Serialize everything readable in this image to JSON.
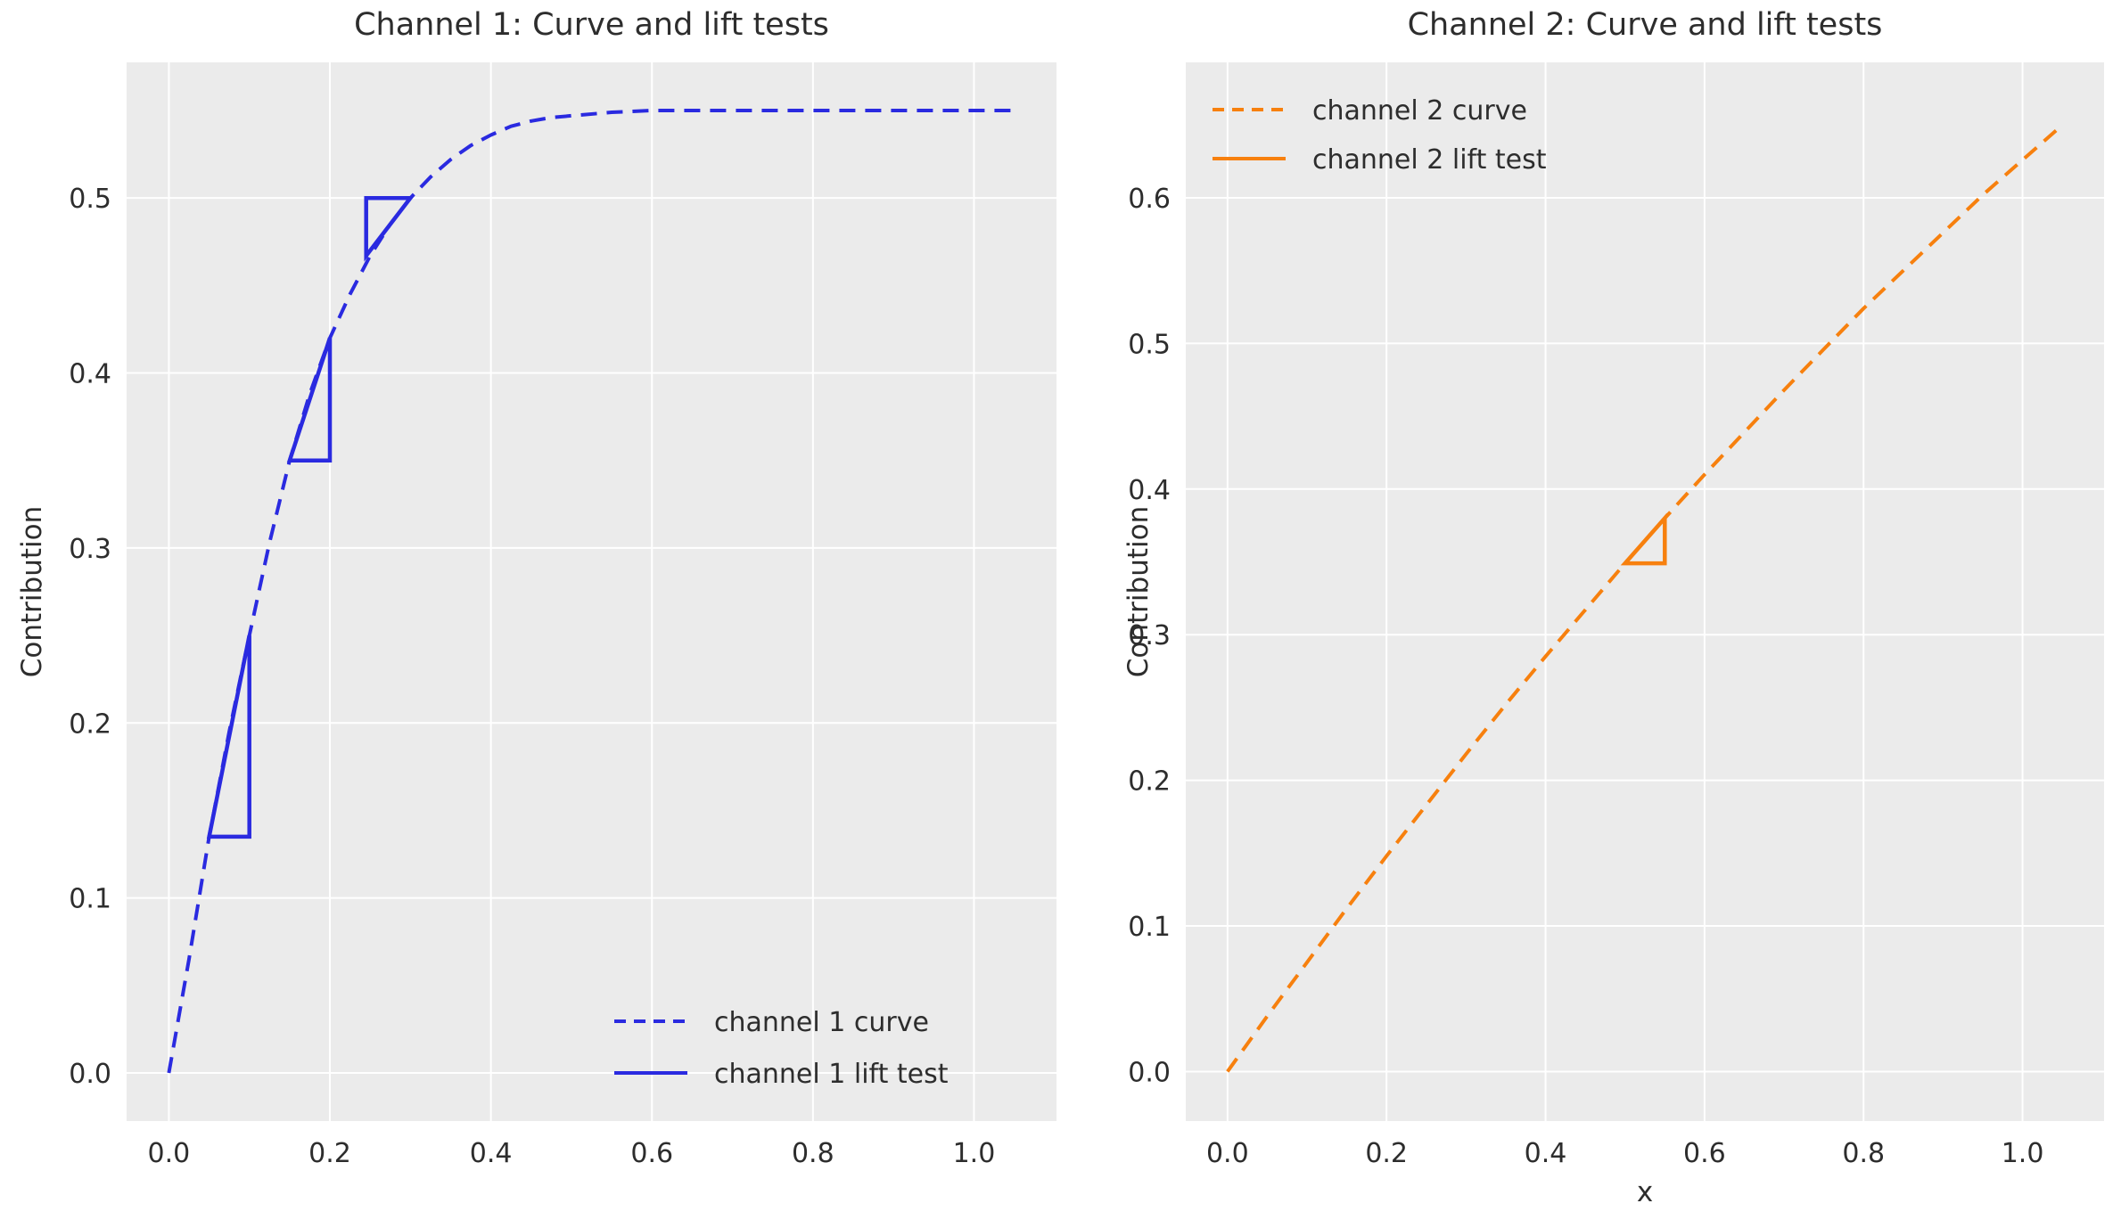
{
  "figure": {
    "background": "#ffffff",
    "plot_bg": "#ebebeb",
    "grid_color": "#ffffff",
    "text_color": "#2d2d2d",
    "accent_blue": "#2a2ae0",
    "accent_orange": "#f7800e"
  },
  "chart_data": [
    {
      "type": "line",
      "title": "Channel 1: Curve and lift tests",
      "xlabel": "",
      "ylabel": "Contribution",
      "xlim": [
        -0.0525,
        1.1025
      ],
      "ylim": [
        -0.0275,
        0.5775
      ],
      "xticks": [
        0.0,
        0.2,
        0.4,
        0.6,
        0.8,
        1.0
      ],
      "yticks": [
        0.0,
        0.1,
        0.2,
        0.3,
        0.4,
        0.5
      ],
      "grid": true,
      "legend_position": "lower right",
      "series": [
        {
          "name": "channel 1 curve",
          "style": "dashed",
          "color": "#2a2ae0",
          "points": [
            [
              0.0,
              0.0
            ],
            [
              0.025,
              0.065
            ],
            [
              0.05,
              0.135
            ],
            [
              0.075,
              0.195
            ],
            [
              0.1,
              0.25
            ],
            [
              0.125,
              0.303
            ],
            [
              0.15,
              0.35
            ],
            [
              0.175,
              0.388
            ],
            [
              0.2,
              0.42
            ],
            [
              0.225,
              0.445
            ],
            [
              0.25,
              0.467
            ],
            [
              0.275,
              0.485
            ],
            [
              0.3,
              0.5
            ],
            [
              0.325,
              0.512
            ],
            [
              0.35,
              0.522
            ],
            [
              0.375,
              0.53
            ],
            [
              0.4,
              0.536
            ],
            [
              0.425,
              0.541
            ],
            [
              0.45,
              0.544
            ],
            [
              0.475,
              0.546
            ],
            [
              0.5,
              0.547
            ],
            [
              0.55,
              0.549
            ],
            [
              0.6,
              0.55
            ],
            [
              0.7,
              0.55
            ],
            [
              0.8,
              0.55
            ],
            [
              0.9,
              0.55
            ],
            [
              1.0,
              0.55
            ],
            [
              1.05,
              0.55
            ]
          ]
        },
        {
          "name": "channel 1 lift test",
          "style": "solid",
          "color": "#2a2ae0",
          "triangles": [
            [
              [
                0.05,
                0.135
              ],
              [
                0.1,
                0.135
              ],
              [
                0.1,
                0.25
              ]
            ],
            [
              [
                0.15,
                0.35
              ],
              [
                0.2,
                0.35
              ],
              [
                0.2,
                0.42
              ]
            ],
            [
              [
                0.245,
                0.467
              ],
              [
                0.245,
                0.5
              ],
              [
                0.3,
                0.5
              ]
            ]
          ]
        }
      ]
    },
    {
      "type": "line",
      "title": "Channel 2: Curve and lift tests",
      "xlabel": "x",
      "ylabel": "Contribution",
      "xlim": [
        -0.0525,
        1.1025
      ],
      "ylim": [
        -0.034,
        0.693
      ],
      "xticks": [
        0.0,
        0.2,
        0.4,
        0.6,
        0.8,
        1.0
      ],
      "yticks": [
        0.0,
        0.1,
        0.2,
        0.3,
        0.4,
        0.5,
        0.6
      ],
      "grid": true,
      "legend_position": "upper left",
      "series": [
        {
          "name": "channel 2 curve",
          "style": "dashed",
          "color": "#f7800e",
          "points": [
            [
              0.0,
              0.0
            ],
            [
              0.05,
              0.038
            ],
            [
              0.1,
              0.075
            ],
            [
              0.15,
              0.112
            ],
            [
              0.2,
              0.148
            ],
            [
              0.25,
              0.183
            ],
            [
              0.3,
              0.218
            ],
            [
              0.35,
              0.252
            ],
            [
              0.4,
              0.285
            ],
            [
              0.45,
              0.317
            ],
            [
              0.5,
              0.349
            ],
            [
              0.55,
              0.38
            ],
            [
              0.6,
              0.41
            ],
            [
              0.65,
              0.439
            ],
            [
              0.7,
              0.468
            ],
            [
              0.75,
              0.496
            ],
            [
              0.8,
              0.524
            ],
            [
              0.85,
              0.55
            ],
            [
              0.9,
              0.576
            ],
            [
              0.95,
              0.602
            ],
            [
              1.0,
              0.626
            ],
            [
              1.05,
              0.65
            ]
          ]
        },
        {
          "name": "channel 2 lift test",
          "style": "solid",
          "color": "#f7800e",
          "triangles": [
            [
              [
                0.5,
                0.349
              ],
              [
                0.55,
                0.349
              ],
              [
                0.55,
                0.38
              ]
            ]
          ]
        }
      ]
    }
  ]
}
